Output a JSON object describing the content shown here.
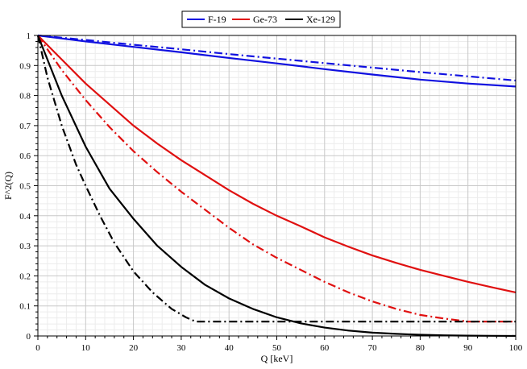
{
  "chart_data": {
    "type": "line",
    "xlabel": "Q [keV]",
    "ylabel": "F^2(Q)",
    "xlim": [
      0,
      100
    ],
    "ylim": [
      0,
      1
    ],
    "x_ticks": [
      0,
      10,
      20,
      30,
      40,
      50,
      60,
      70,
      80,
      90,
      100
    ],
    "y_ticks": [
      0,
      0.1,
      0.2,
      0.3,
      0.4,
      0.5,
      0.6,
      0.7,
      0.8,
      0.9,
      1
    ],
    "x_tick_labels": [
      "0",
      "10",
      "20",
      "30",
      "40",
      "50",
      "60",
      "70",
      "80",
      "90",
      "100"
    ],
    "y_tick_labels": [
      "0",
      "0.1",
      "0.2",
      "0.3",
      "0.4",
      "0.5",
      "0.6",
      "0.7",
      "0.8",
      "0.9",
      "1"
    ],
    "grid": true,
    "legend_position": "top-center",
    "legend": [
      {
        "label": "F-19",
        "color": "#1010e0"
      },
      {
        "label": "Ge-73",
        "color": "#e01010"
      },
      {
        "label": "Xe-129",
        "color": "#000000"
      }
    ],
    "series": [
      {
        "legend": "F-19",
        "style": "solid",
        "color": "#1010e0",
        "x": [
          0,
          10,
          20,
          30,
          40,
          50,
          60,
          70,
          80,
          90,
          100
        ],
        "y": [
          1,
          0.98,
          0.962,
          0.944,
          0.925,
          0.907,
          0.888,
          0.87,
          0.853,
          0.84,
          0.83
        ]
      },
      {
        "legend": "F-19",
        "style": "dashdot",
        "color": "#1010e0",
        "x": [
          0,
          10,
          20,
          30,
          40,
          50,
          60,
          70,
          80,
          90,
          100
        ],
        "y": [
          1,
          0.985,
          0.969,
          0.954,
          0.938,
          0.923,
          0.908,
          0.893,
          0.878,
          0.864,
          0.85
        ]
      },
      {
        "legend": "Ge-73",
        "style": "solid",
        "color": "#e01010",
        "x": [
          0,
          5,
          10,
          15,
          20,
          25,
          30,
          35,
          40,
          45,
          50,
          55,
          60,
          65,
          70,
          75,
          80,
          85,
          90,
          95,
          100
        ],
        "y": [
          1,
          0.92,
          0.84,
          0.77,
          0.7,
          0.64,
          0.585,
          0.535,
          0.485,
          0.44,
          0.4,
          0.365,
          0.328,
          0.297,
          0.268,
          0.243,
          0.22,
          0.2,
          0.18,
          0.162,
          0.145
        ]
      },
      {
        "legend": "Ge-73",
        "style": "dashdot",
        "color": "#e01010",
        "x": [
          0,
          5,
          10,
          15,
          20,
          25,
          30,
          35,
          40,
          45,
          50,
          55,
          60,
          65,
          70,
          75,
          80,
          85,
          90,
          92,
          95,
          100
        ],
        "y": [
          1,
          0.885,
          0.785,
          0.695,
          0.615,
          0.545,
          0.48,
          0.42,
          0.36,
          0.305,
          0.26,
          0.22,
          0.18,
          0.145,
          0.115,
          0.09,
          0.07,
          0.058,
          0.048,
          0.048,
          0.048,
          0.048
        ]
      },
      {
        "legend": "Xe-129",
        "style": "solid",
        "color": "#000000",
        "x": [
          0,
          5,
          10,
          15,
          20,
          25,
          30,
          35,
          40,
          45,
          50,
          55,
          60,
          65,
          70,
          75,
          80,
          85,
          90,
          95,
          100
        ],
        "y": [
          1,
          0.8,
          0.63,
          0.49,
          0.39,
          0.3,
          0.23,
          0.17,
          0.125,
          0.09,
          0.062,
          0.042,
          0.028,
          0.018,
          0.011,
          0.007,
          0.004,
          0.002,
          0.001,
          0.0005,
          0.0002
        ]
      },
      {
        "legend": "Xe-129",
        "style": "dashdot",
        "color": "#000000",
        "x": [
          0,
          2,
          5,
          8,
          10,
          13,
          16,
          20,
          24,
          28,
          31,
          33,
          35,
          40,
          60,
          80,
          100
        ],
        "y": [
          1,
          0.86,
          0.7,
          0.57,
          0.5,
          0.4,
          0.31,
          0.215,
          0.145,
          0.09,
          0.062,
          0.048,
          0.048,
          0.048,
          0.048,
          0.048,
          0.048
        ]
      }
    ]
  }
}
